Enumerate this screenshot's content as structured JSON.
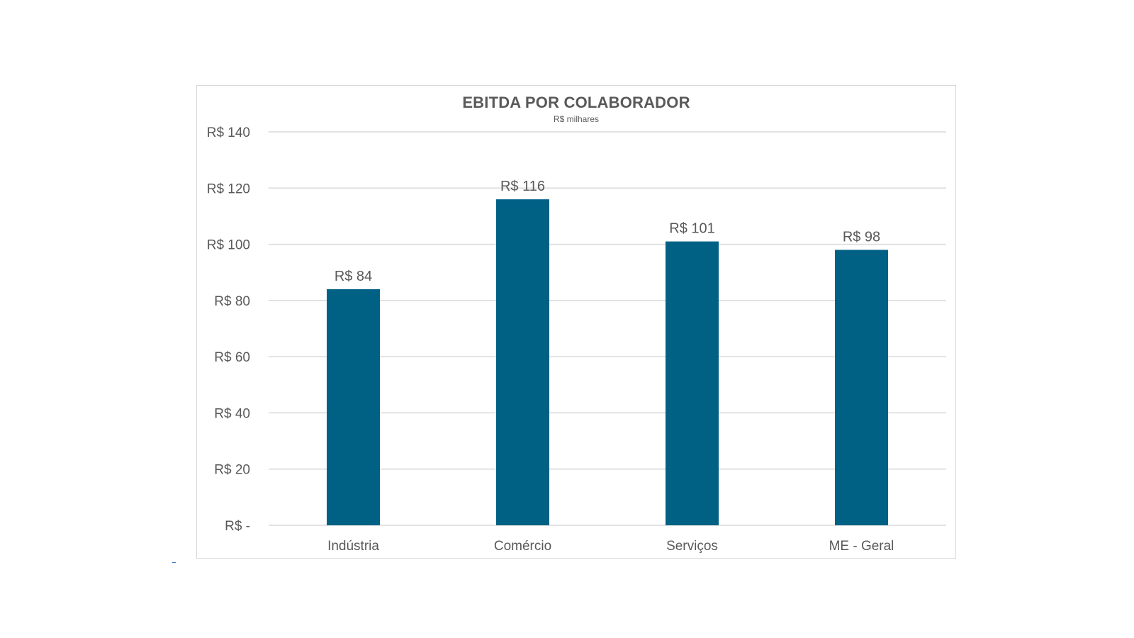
{
  "chart_data": {
    "type": "bar",
    "title": "EBITDA  POR COLABORADOR",
    "subtitle": "R$ milhares",
    "categories": [
      "Indústria",
      "Comércio",
      "Serviços",
      "ME - Geral"
    ],
    "values": [
      84,
      116,
      101,
      98
    ],
    "data_labels": [
      "R$ 84",
      "R$ 116",
      "R$ 101",
      "R$ 98"
    ],
    "ylim": [
      0,
      140
    ],
    "yticks": [
      0,
      20,
      40,
      60,
      80,
      100,
      120,
      140
    ],
    "ytick_labels": [
      "R$ -",
      "R$ 20",
      "R$ 40",
      "R$ 60",
      "R$ 80",
      "R$ 100",
      "R$ 120",
      "R$ 140"
    ],
    "grid": true,
    "legend": "none",
    "bar_color": "#006185",
    "grid_color": "#d9d9d9",
    "text_color": "#595959"
  }
}
